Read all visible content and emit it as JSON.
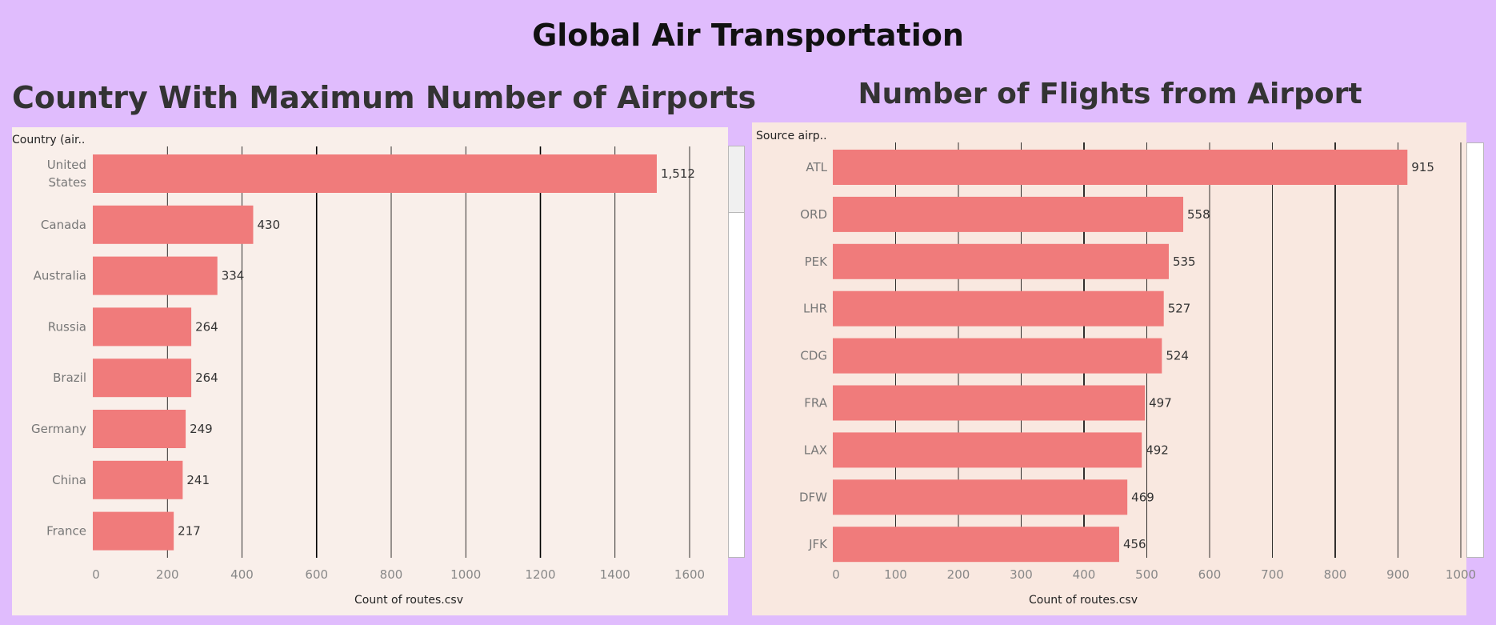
{
  "dashboard": {
    "title": "Global Air Transportation"
  },
  "colors": {
    "bar": "#f07b7b",
    "background": "#e0bcfd",
    "grid": "#000000"
  },
  "chart_data": [
    {
      "type": "bar",
      "orientation": "horizontal",
      "title": "Country With Maximum Number of Airports",
      "row_header": "Country (air..",
      "xlabel": "Count of routes.csv",
      "categories": [
        [
          "United",
          "States"
        ],
        [
          "Canada"
        ],
        [
          "Australia"
        ],
        [
          "Russia"
        ],
        [
          "Brazil"
        ],
        [
          "Germany"
        ],
        [
          "China"
        ],
        [
          "France"
        ]
      ],
      "values": [
        1512,
        430,
        334,
        264,
        264,
        249,
        241,
        217
      ],
      "value_labels": [
        "1,512",
        "430",
        "334",
        "264",
        "264",
        "249",
        "241",
        "217"
      ],
      "xticks": [
        0,
        200,
        400,
        600,
        800,
        1000,
        1200,
        1400,
        1600
      ],
      "xlim": [
        0,
        1600
      ],
      "grid": true
    },
    {
      "type": "bar",
      "orientation": "horizontal",
      "title": "Number of Flights from Airport",
      "row_header": "Source airp..",
      "xlabel": "Count of routes.csv",
      "categories": [
        [
          "ATL"
        ],
        [
          "ORD"
        ],
        [
          "PEK"
        ],
        [
          "LHR"
        ],
        [
          "CDG"
        ],
        [
          "FRA"
        ],
        [
          "LAX"
        ],
        [
          "DFW"
        ],
        [
          "JFK"
        ]
      ],
      "values": [
        915,
        558,
        535,
        527,
        524,
        497,
        492,
        469,
        456
      ],
      "value_labels": [
        "915",
        "558",
        "535",
        "527",
        "524",
        "497",
        "492",
        "469",
        "456"
      ],
      "xticks": [
        0,
        100,
        200,
        300,
        400,
        500,
        600,
        700,
        800,
        900,
        1000
      ],
      "xlim": [
        0,
        1000
      ],
      "grid": true
    }
  ]
}
